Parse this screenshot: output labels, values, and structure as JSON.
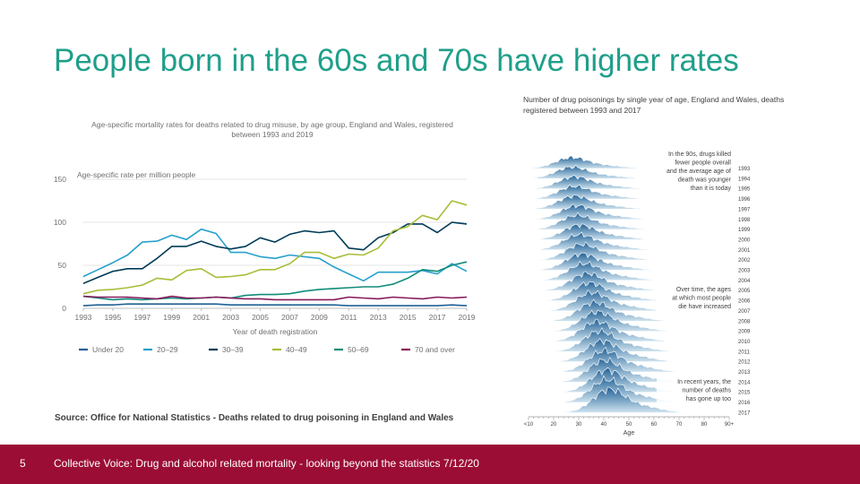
{
  "slide": {
    "title": "People born in the 60s and 70s have higher rates",
    "page_number": "5",
    "footer": "Collective Voice: Drug and alcohol related mortality - looking beyond the statistics 7/12/20",
    "accent_color": "#1f9f8a",
    "footer_color": "#9b0d35"
  },
  "chart_data": [
    {
      "type": "line",
      "title": "Age-specific mortality rates for deaths related to drug misuse, by age group, England and Wales, registered between 1993 and 2019",
      "title_lines": [
        "Age-specific mortality rates for deaths related to drug misuse, by age group, England and Wales, registered",
        "between 1993 and 2019"
      ],
      "ylabel": "Age-specific rate per million people",
      "xlabel": "Year of death registration",
      "ylim": [
        0,
        150
      ],
      "yticks": [
        0,
        50,
        100,
        150
      ],
      "xticks": [
        1993,
        1995,
        1997,
        1999,
        2001,
        2003,
        2005,
        2007,
        2009,
        2011,
        2013,
        2015,
        2017,
        2019
      ],
      "x": [
        1993,
        1994,
        1995,
        1996,
        1997,
        1998,
        1999,
        2000,
        2001,
        2002,
        2003,
        2004,
        2005,
        2006,
        2007,
        2008,
        2009,
        2010,
        2011,
        2012,
        2013,
        2014,
        2015,
        2016,
        2017,
        2018,
        2019
      ],
      "grid": true,
      "legend_position": "bottom",
      "source": "Source: Office for National Statistics - Deaths related to drug poisoning in England and Wales",
      "series": [
        {
          "name": "Under 20",
          "color": "#206095",
          "values": [
            3,
            4,
            4,
            5,
            5,
            5,
            5,
            5,
            5,
            5,
            4,
            4,
            4,
            4,
            4,
            4,
            4,
            4,
            3,
            3,
            3,
            3,
            3,
            3,
            3,
            4,
            3
          ]
        },
        {
          "name": "20–29",
          "color": "#27a0cc",
          "values": [
            37,
            45,
            53,
            62,
            77,
            78,
            85,
            80,
            92,
            87,
            65,
            65,
            60,
            58,
            62,
            60,
            58,
            48,
            40,
            32,
            42,
            42,
            42,
            44,
            40,
            52,
            43
          ]
        },
        {
          "name": "30–39",
          "color": "#003c57",
          "values": [
            29,
            36,
            43,
            46,
            46,
            58,
            72,
            72,
            78,
            72,
            69,
            72,
            82,
            77,
            86,
            90,
            88,
            90,
            70,
            68,
            82,
            88,
            98,
            98,
            88,
            100,
            98
          ]
        },
        {
          "name": "40–49",
          "color": "#a8bd3a",
          "values": [
            17,
            21,
            22,
            24,
            27,
            35,
            33,
            44,
            46,
            36,
            37,
            39,
            45,
            45,
            52,
            65,
            65,
            58,
            63,
            62,
            70,
            90,
            95,
            108,
            103,
            125,
            120
          ]
        },
        {
          "name": "50–69",
          "color": "#118c7b",
          "values": [
            14,
            12,
            10,
            11,
            10,
            11,
            12,
            11,
            12,
            13,
            12,
            15,
            16,
            16,
            17,
            20,
            22,
            23,
            24,
            25,
            25,
            28,
            35,
            45,
            43,
            50,
            54
          ]
        },
        {
          "name": "70 and over",
          "color": "#871a5b",
          "values": [
            14,
            13,
            13,
            13,
            12,
            11,
            14,
            12,
            12,
            13,
            12,
            11,
            11,
            10,
            10,
            10,
            10,
            10,
            13,
            12,
            11,
            13,
            12,
            11,
            13,
            12,
            13
          ]
        }
      ]
    },
    {
      "type": "area",
      "title": "Number of drug poisonings by single year of age, England and Wales, deaths registered between 1993 and 2017",
      "title_lines": [
        "Number of drug poisonings by single year of age, England and Wales, deaths",
        "registered between 1993 and 2017"
      ],
      "xlabel": "Age",
      "xticks": [
        "<10",
        "20",
        "30",
        "40",
        "50",
        "60",
        "70",
        "80",
        "90+"
      ],
      "series_labels": [
        "1993",
        "1994",
        "1995",
        "1996",
        "1997",
        "1998",
        "1999",
        "2000",
        "2001",
        "2002",
        "2003",
        "2004",
        "2005",
        "2006",
        "2007",
        "2008",
        "2009",
        "2010",
        "2011",
        "2012",
        "2013",
        "2014",
        "2015",
        "2016",
        "2017"
      ],
      "peak_age_by_year": [
        27,
        27,
        28,
        28,
        28,
        29,
        29,
        30,
        30,
        31,
        31,
        32,
        33,
        34,
        35,
        36,
        37,
        37,
        38,
        39,
        40,
        40,
        41,
        41,
        42
      ],
      "annotations": [
        {
          "lines": [
            "In the 90s, drugs killed",
            "fewer people overall",
            "and the average age of",
            "death was younger",
            "than it is today"
          ],
          "series": "1993"
        },
        {
          "lines": [
            "Over time, the ages",
            "at which most people",
            "die have increased"
          ],
          "series": "2005"
        },
        {
          "lines": [
            "In recent years, the",
            "number of deaths",
            "has gone up too"
          ],
          "series": "2014"
        }
      ],
      "fill_color": "#206095",
      "light_color": "#cfe3ef"
    }
  ]
}
